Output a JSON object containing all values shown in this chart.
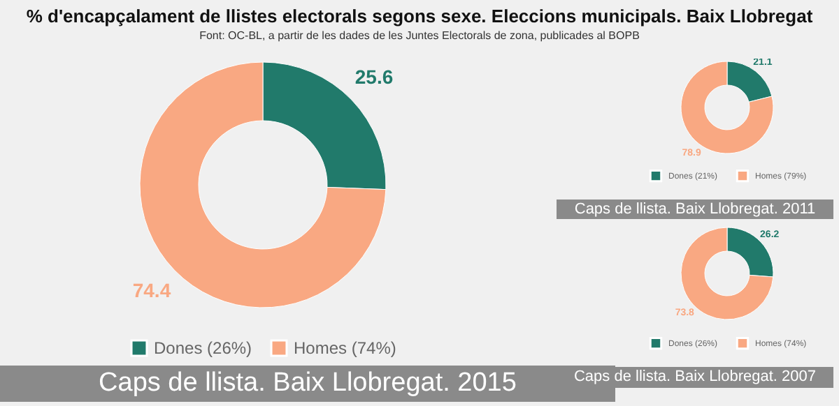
{
  "chart_data": [
    {
      "type": "donut",
      "title": "Caps de llista. Baix Llobregat. 2015",
      "annotations": [
        "% d'encapçalament de llistes electorals segons sexe. Eleccions municipals. Baix Llobregat",
        "Font: OC-BL, a partir de les dades de les Juntes Electorals de zona, publicades al BOPB"
      ],
      "categories": [
        "Dones (26%)",
        "Homes (74%)"
      ],
      "values": [
        25.6,
        74.4
      ],
      "colors": [
        "#217a6b",
        "#f9a882"
      ],
      "data_labels": true,
      "legend": "bottom"
    },
    {
      "type": "donut",
      "title": "Caps de llista. Baix Llobregat. 2011",
      "categories": [
        "Dones (21%)",
        "Homes (79%)"
      ],
      "values": [
        21.1,
        78.9
      ],
      "colors": [
        "#217a6b",
        "#f9a882"
      ],
      "data_labels": true,
      "legend": "bottom"
    },
    {
      "type": "donut",
      "title": "Caps de llista. Baix Llobregat. 2007",
      "categories": [
        "Dones (26%)",
        "Homes (74%)"
      ],
      "values": [
        26.2,
        73.8
      ],
      "colors": [
        "#217a6b",
        "#f9a882"
      ],
      "data_labels": true,
      "legend": "bottom"
    }
  ]
}
